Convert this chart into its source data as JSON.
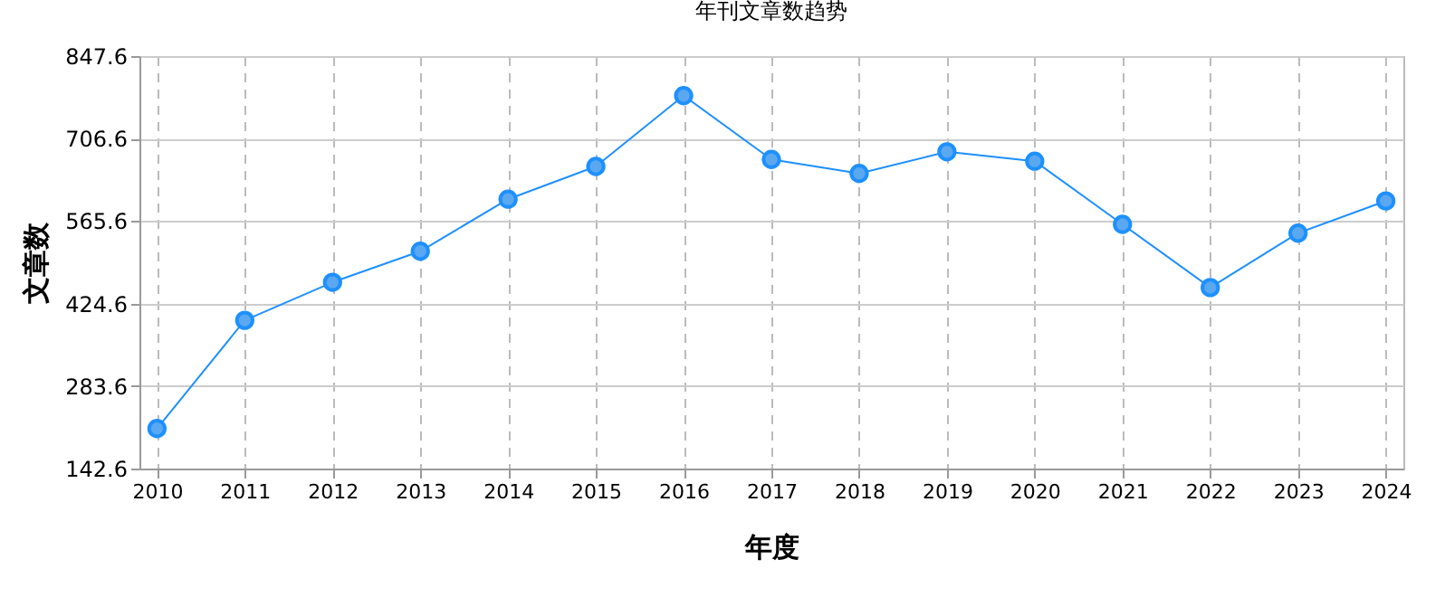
{
  "chart_data": {
    "type": "line",
    "title": "年刊文章数趋势",
    "xlabel": "年度",
    "ylabel": "文章数",
    "categories": [
      "2010",
      "2011",
      "2012",
      "2013",
      "2014",
      "2015",
      "2016",
      "2017",
      "2018",
      "2019",
      "2020",
      "2021",
      "2022",
      "2023",
      "2024"
    ],
    "series": [
      {
        "color": "#1e90ff",
        "values": [
          211,
          396,
          461,
          514,
          603,
          659,
          780,
          671,
          647,
          684,
          668,
          560,
          452,
          545,
          600
        ]
      }
    ],
    "ylim": [
      142.6,
      847.6
    ],
    "yticks": [
      142.6,
      283.6,
      424.6,
      565.6,
      706.6,
      847.6
    ],
    "grid": true,
    "marker": "circle",
    "line_style": "solid"
  }
}
